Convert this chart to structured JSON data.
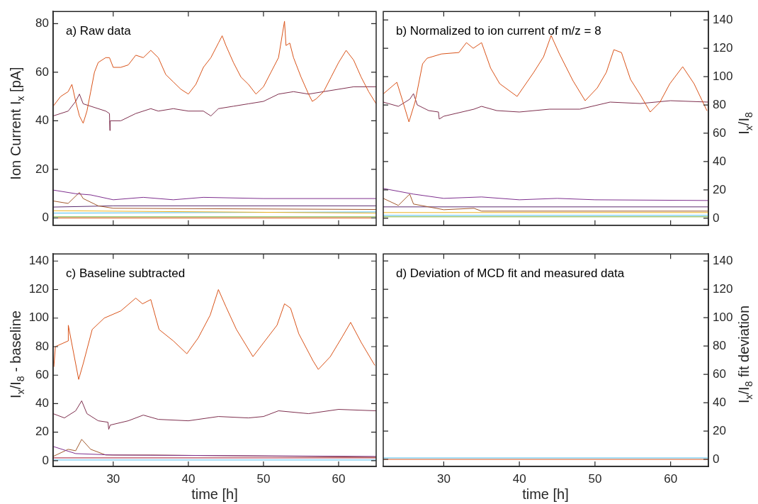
{
  "chart_data": [
    {
      "type": "line",
      "title": "a) Raw data",
      "ylabel": "Ion Current I$_{x}$ [pA]",
      "xlim": [
        22,
        65
      ],
      "xticks": [
        30,
        40,
        50,
        60
      ],
      "ylim": [
        -3,
        85
      ],
      "yticks": [
        0,
        20,
        40,
        60,
        80
      ],
      "tick_labels": "y",
      "grid": false,
      "marker": "none",
      "series": [
        {
          "color": "#d95319",
          "x": [
            22,
            23,
            24,
            24.5,
            25,
            25.5,
            26,
            26.5,
            27,
            27.5,
            28,
            29,
            29.5,
            30,
            31,
            32,
            33,
            34,
            35,
            36,
            37,
            38,
            39,
            40,
            41,
            42,
            43,
            44,
            44.5,
            45,
            46,
            47,
            48,
            49,
            50,
            51,
            52,
            52.8,
            53,
            53.5,
            54,
            55,
            56,
            56.5,
            57,
            58,
            59,
            60,
            61,
            62,
            63,
            64,
            65
          ],
          "values": [
            46,
            50,
            52,
            55,
            48,
            42,
            39,
            44,
            52,
            60,
            64,
            66,
            66,
            62,
            62,
            63,
            67,
            66,
            69,
            66,
            59,
            56,
            53,
            51,
            55,
            62,
            66,
            72,
            75,
            71,
            64,
            58,
            55,
            51,
            54,
            60,
            66,
            81,
            71,
            72,
            66,
            58,
            51,
            48,
            49,
            52,
            58,
            64,
            69,
            65,
            58,
            52,
            47
          ]
        },
        {
          "color": "#7e2f4e",
          "x": [
            22,
            24,
            25,
            25.5,
            26,
            27,
            29,
            29.5,
            29.55,
            29.6,
            31,
            33,
            35,
            36,
            38,
            40,
            42,
            43,
            44,
            46,
            48,
            50,
            52,
            54,
            56,
            58,
            60,
            62,
            65
          ],
          "values": [
            42,
            44,
            48,
            51,
            47,
            46,
            44,
            43,
            36,
            40,
            40,
            43,
            45,
            44,
            45,
            44,
            44,
            42,
            45,
            46,
            47,
            48,
            51,
            52,
            51,
            52,
            53,
            54,
            54
          ]
        },
        {
          "color": "#7e2f8e",
          "x": [
            22,
            25,
            27,
            30,
            34,
            38,
            42,
            50,
            65
          ],
          "values": [
            11.5,
            10,
            9.5,
            7.5,
            8.5,
            7.5,
            8.5,
            8,
            8
          ]
        },
        {
          "color": "#a2592d",
          "x": [
            22,
            24,
            25.5,
            26,
            28,
            30,
            65
          ],
          "values": [
            7,
            6,
            10.5,
            8,
            5,
            4,
            3.5
          ]
        },
        {
          "color": "#5b2c6f",
          "x": [
            22,
            30,
            65
          ],
          "values": [
            4.5,
            5,
            5
          ]
        },
        {
          "color": "#edb120",
          "x": [
            22,
            65
          ],
          "values": [
            3,
            2
          ]
        },
        {
          "color": "#4dbeee",
          "x": [
            22,
            65
          ],
          "values": [
            2,
            2.5
          ]
        },
        {
          "color": "#77ac30",
          "x": [
            22,
            65
          ],
          "values": [
            0.5,
            0.5
          ]
        },
        {
          "color": "#d95319",
          "x": [
            22,
            65
          ],
          "values": [
            0,
            0
          ]
        }
      ]
    },
    {
      "type": "line",
      "title": "b) Normalized to ion current of m/z = 8",
      "ylabel": "I$_{x}$/I$_{8}$",
      "xlim": [
        22,
        65
      ],
      "xticks": [
        30,
        40,
        50,
        60
      ],
      "ylim": [
        -5,
        146
      ],
      "yticks": [
        0,
        20,
        40,
        60,
        80,
        100,
        120,
        140
      ],
      "tick_labels": "y",
      "grid": false,
      "marker": "none",
      "series": [
        {
          "color": "#d95319",
          "x": [
            22.05,
            23.8,
            24.5,
            25.4,
            26.2,
            27.2,
            27.8,
            29.7,
            32,
            33,
            33.9,
            35,
            36.2,
            37.4,
            39.7,
            41.9,
            43.2,
            44.2,
            45.3,
            47.1,
            48.7,
            50.3,
            51.5,
            52.5,
            53.5,
            54.7,
            56,
            57.3,
            58.6,
            59.9,
            61.6,
            63.1,
            64.8
          ],
          "values": [
            88,
            96,
            84,
            68,
            82,
            109,
            113,
            116,
            117,
            124,
            120,
            124,
            106,
            95,
            86,
            103,
            114,
            129,
            116,
            97,
            83,
            92,
            103,
            119,
            117,
            98,
            87,
            75,
            82,
            95,
            107,
            95,
            76
          ]
        },
        {
          "color": "#7e2f4e",
          "x": [
            22,
            24,
            25.5,
            26,
            26.5,
            28,
            29.3,
            29.4,
            30,
            34,
            35,
            37,
            40,
            44,
            48,
            52,
            56,
            60,
            65
          ],
          "values": [
            82,
            79,
            84,
            88,
            80,
            76,
            75,
            70,
            72,
            77,
            79,
            76,
            75,
            77,
            77,
            82,
            81,
            83,
            82
          ]
        },
        {
          "color": "#7e2f8e",
          "x": [
            22,
            26,
            30,
            35,
            40,
            45,
            50,
            65
          ],
          "values": [
            21,
            17,
            14,
            15,
            13,
            14,
            13,
            12.5
          ]
        },
        {
          "color": "#a2592d",
          "x": [
            22,
            24,
            25.5,
            26,
            30,
            34,
            35,
            65
          ],
          "values": [
            14,
            9,
            17,
            10,
            6,
            7,
            5,
            5
          ]
        },
        {
          "color": "#5b2c6f",
          "x": [
            22,
            65
          ],
          "values": [
            8,
            8
          ]
        },
        {
          "color": "#edb120",
          "x": [
            22,
            65
          ],
          "values": [
            4,
            4
          ]
        },
        {
          "color": "#4dbeee",
          "x": [
            22,
            65
          ],
          "values": [
            2,
            2
          ]
        },
        {
          "color": "#77ac30",
          "x": [
            22,
            65
          ],
          "values": [
            1,
            1
          ]
        }
      ]
    },
    {
      "type": "line",
      "title": "c) Baseline subtracted",
      "xlabel": "time [h]",
      "ylabel": "I$_{x}$/I$_{8}$ - baseline",
      "xlim": [
        22,
        65
      ],
      "xticks": [
        30,
        40,
        50,
        60
      ],
      "ylim": [
        -4,
        145
      ],
      "yticks": [
        0,
        20,
        40,
        60,
        80,
        100,
        120,
        140
      ],
      "grid": false,
      "marker": "none",
      "series": [
        {
          "color": "#d95319",
          "x": [
            22.1,
            22.3,
            24,
            24.02,
            24.6,
            25.4,
            26,
            27.2,
            28.8,
            31,
            33,
            33.9,
            35,
            36.1,
            38,
            39.8,
            41.3,
            42.9,
            44,
            45,
            46.4,
            48.6,
            50.2,
            51.8,
            52.8,
            53.6,
            54.7,
            56.6,
            57.3,
            58.9,
            60.5,
            61.6,
            63,
            64.8
          ],
          "values": [
            66,
            80,
            84,
            95,
            79,
            57,
            68,
            92,
            100,
            105,
            114,
            110,
            113,
            92,
            84,
            75,
            86,
            102,
            120,
            108,
            92,
            73,
            84,
            95,
            110,
            107,
            89,
            70,
            64,
            73,
            87,
            97,
            83,
            67
          ]
        },
        {
          "color": "#7e2f4e",
          "x": [
            22,
            23.5,
            25,
            25.8,
            26.5,
            28,
            29.3,
            29.4,
            29.6,
            32,
            34,
            36,
            40,
            44,
            48,
            50,
            52,
            56,
            60,
            65
          ],
          "values": [
            33,
            30,
            35,
            42,
            33,
            28,
            27,
            22,
            25,
            28,
            32,
            29,
            28,
            31,
            30,
            31,
            35,
            33,
            36,
            35
          ]
        },
        {
          "color": "#7e2f8e",
          "x": [
            22,
            25,
            30,
            65
          ],
          "values": [
            10,
            5,
            4,
            3
          ]
        },
        {
          "color": "#a2592d",
          "x": [
            22,
            24,
            25,
            25.8,
            27,
            29,
            35,
            65
          ],
          "values": [
            3,
            8,
            7,
            15,
            8,
            4,
            4,
            2.5
          ]
        },
        {
          "color": "#a2142f",
          "x": [
            22,
            65
          ],
          "values": [
            2,
            2
          ]
        },
        {
          "color": "#4dbeee",
          "x": [
            22,
            65
          ],
          "values": [
            0.5,
            0.5
          ]
        }
      ]
    },
    {
      "type": "line",
      "title": "d) Deviation of MCD fit and measured data",
      "xlabel": "time [h]",
      "y2label": "I$_{x}$/I$_{8}$ fit deviation",
      "xlim": [
        22,
        65
      ],
      "xticks": [
        30,
        40,
        50,
        60
      ],
      "y2lim": [
        -5,
        145
      ],
      "y2ticks": [
        0,
        20,
        40,
        60,
        80,
        100,
        120,
        140
      ],
      "grid": false,
      "marker": "none",
      "series": [
        {
          "color": "#4dbeee",
          "axis": "y2",
          "x": [
            22,
            65
          ],
          "values": [
            1,
            1
          ]
        },
        {
          "color": "#d95319",
          "axis": "y2",
          "x": [
            22,
            65
          ],
          "values": [
            0,
            0
          ]
        }
      ]
    }
  ]
}
